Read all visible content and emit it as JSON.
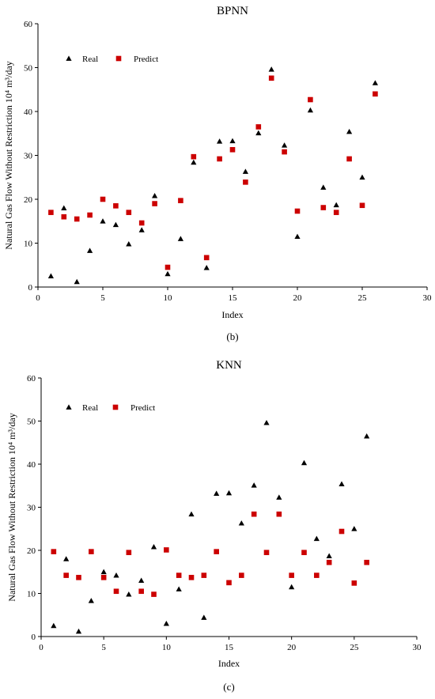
{
  "chart_data": [
    {
      "type": "scatter",
      "title": "BPNN",
      "caption": "(b)",
      "xlabel": "Index",
      "ylabel": "Natural Gas Flow Without Restriction 10⁴ m³/day",
      "xlim": [
        0,
        30
      ],
      "ylim": [
        0,
        60
      ],
      "x_ticks": [
        "0",
        "5",
        "10",
        "15",
        "20",
        "25",
        "30"
      ],
      "y_ticks": [
        "0",
        "10",
        "20",
        "30",
        "40",
        "50",
        "60"
      ],
      "legend_position": "top-left",
      "x": [
        1,
        2,
        3,
        4,
        5,
        6,
        7,
        8,
        9,
        10,
        11,
        12,
        13,
        14,
        15,
        16,
        17,
        18,
        19,
        20,
        21,
        22,
        23,
        24,
        25,
        26
      ],
      "series": [
        {
          "name": "Real",
          "marker": "triangle",
          "color": "#000000",
          "values": [
            2.5,
            18,
            1.2,
            8.3,
            15,
            14.2,
            9.8,
            13,
            20.8,
            3,
            11,
            28.4,
            4.4,
            33.2,
            33.3,
            26.3,
            35.1,
            49.6,
            32.3,
            11.5,
            40.3,
            22.7,
            18.7,
            35.4,
            25,
            46.5
          ]
        },
        {
          "name": "Predict",
          "marker": "square",
          "color": "#cc0000",
          "values": [
            17,
            16,
            15.5,
            16.4,
            20,
            18.5,
            17,
            14.6,
            19,
            4.5,
            19.7,
            29.7,
            6.7,
            29.2,
            31.3,
            23.9,
            36.5,
            47.6,
            30.8,
            17.3,
            42.7,
            18.1,
            17,
            29.2,
            18.6,
            44
          ]
        }
      ]
    },
    {
      "type": "scatter",
      "title": "KNN",
      "caption": "(c)",
      "xlabel": "Index",
      "ylabel": "Natural Gas Flow Without Restriction 10⁴ m³/day",
      "xlim": [
        0,
        30
      ],
      "ylim": [
        0,
        60
      ],
      "x_ticks": [
        "0",
        "5",
        "10",
        "15",
        "20",
        "25",
        "30"
      ],
      "y_ticks": [
        "0",
        "10",
        "20",
        "30",
        "40",
        "50",
        "60"
      ],
      "legend_position": "top-left",
      "x": [
        1,
        2,
        3,
        4,
        5,
        6,
        7,
        8,
        9,
        10,
        11,
        12,
        13,
        14,
        15,
        16,
        17,
        18,
        19,
        20,
        21,
        22,
        23,
        24,
        25,
        26
      ],
      "series": [
        {
          "name": "Real",
          "marker": "triangle",
          "color": "#000000",
          "values": [
            2.5,
            18,
            1.2,
            8.3,
            15,
            14.2,
            9.8,
            13,
            20.8,
            3,
            11,
            28.4,
            4.4,
            33.2,
            33.3,
            26.3,
            35.1,
            49.6,
            32.3,
            11.5,
            40.3,
            22.7,
            18.7,
            35.4,
            25,
            46.5
          ]
        },
        {
          "name": "Predict",
          "marker": "square",
          "color": "#cc0000",
          "values": [
            19.7,
            14.2,
            13.7,
            19.7,
            13.7,
            10.5,
            19.5,
            10.5,
            9.8,
            20.1,
            14.2,
            13.7,
            14.2,
            19.7,
            12.5,
            14.2,
            28.4,
            19.5,
            28.4,
            14.2,
            19.5,
            14.2,
            17.2,
            24.4,
            12.4,
            17.2
          ]
        }
      ]
    }
  ]
}
